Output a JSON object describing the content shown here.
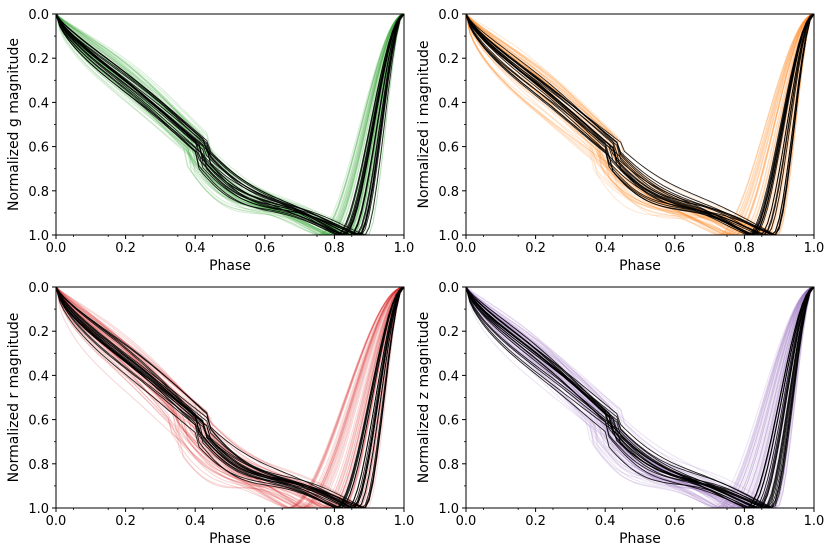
{
  "chart_data": [
    {
      "type": "line",
      "xlabel": "Phase",
      "ylabel": "Normalized g magnitude",
      "xlim": [
        0.0,
        1.0
      ],
      "ylim": [
        1.0,
        0.0
      ],
      "y_inverted": true,
      "xticks": [
        "0.0",
        "0.2",
        "0.4",
        "0.6",
        "0.8",
        "1.0"
      ],
      "yticks": [
        "0.0",
        "0.2",
        "0.4",
        "0.6",
        "0.8",
        "1.0"
      ],
      "grid": false,
      "background_color": "#2ca02c",
      "highlight_color": "#000000",
      "background_count": 60,
      "highlight_count": 20,
      "min_phase_range": [
        0.74,
        0.9
      ],
      "plateau_level_range": [
        0.82,
        0.94
      ],
      "typical_curve": {
        "x": [
          0.0,
          0.1,
          0.2,
          0.3,
          0.4,
          0.5,
          0.6,
          0.7,
          0.8,
          0.86,
          0.9,
          0.95,
          1.0
        ],
        "y": [
          0.0,
          0.28,
          0.45,
          0.6,
          0.73,
          0.82,
          0.87,
          0.89,
          0.93,
          1.0,
          0.7,
          0.25,
          0.0
        ]
      }
    },
    {
      "type": "line",
      "xlabel": "Phase",
      "ylabel": "Normalized i magnitude",
      "xlim": [
        0.0,
        1.0
      ],
      "ylim": [
        1.0,
        0.0
      ],
      "y_inverted": true,
      "xticks": [
        "0.0",
        "0.2",
        "0.4",
        "0.6",
        "0.8",
        "1.0"
      ],
      "yticks": [
        "0.0",
        "0.2",
        "0.4",
        "0.6",
        "0.8",
        "1.0"
      ],
      "grid": false,
      "background_color": "#ff7f0e",
      "highlight_color": "#000000",
      "background_count": 60,
      "highlight_count": 20,
      "min_phase_range": [
        0.72,
        0.9
      ],
      "plateau_level_range": [
        0.78,
        0.92
      ],
      "typical_curve": {
        "x": [
          0.0,
          0.1,
          0.2,
          0.3,
          0.4,
          0.5,
          0.6,
          0.7,
          0.8,
          0.86,
          0.9,
          0.95,
          1.0
        ],
        "y": [
          0.0,
          0.28,
          0.44,
          0.57,
          0.68,
          0.77,
          0.83,
          0.86,
          0.92,
          1.0,
          0.65,
          0.22,
          0.0
        ]
      }
    },
    {
      "type": "line",
      "xlabel": "Phase",
      "ylabel": "Normalized r magnitude",
      "xlim": [
        0.0,
        1.0
      ],
      "ylim": [
        1.0,
        0.0
      ],
      "y_inverted": true,
      "xticks": [
        "0.0",
        "0.2",
        "0.4",
        "0.6",
        "0.8",
        "1.0"
      ],
      "yticks": [
        "0.0",
        "0.2",
        "0.4",
        "0.6",
        "0.8",
        "1.0"
      ],
      "grid": false,
      "background_color": "#d62728",
      "highlight_color": "#000000",
      "background_count": 60,
      "highlight_count": 20,
      "min_phase_range": [
        0.66,
        0.9
      ],
      "plateau_level_range": [
        0.76,
        0.92
      ],
      "typical_curve": {
        "x": [
          0.0,
          0.1,
          0.2,
          0.3,
          0.4,
          0.5,
          0.6,
          0.7,
          0.8,
          0.86,
          0.9,
          0.95,
          1.0
        ],
        "y": [
          0.0,
          0.22,
          0.36,
          0.49,
          0.61,
          0.71,
          0.78,
          0.82,
          0.9,
          1.0,
          0.7,
          0.25,
          0.0
        ]
      }
    },
    {
      "type": "line",
      "xlabel": "Phase",
      "ylabel": "Normalized z magnitude",
      "xlim": [
        0.0,
        1.0
      ],
      "ylim": [
        1.0,
        0.0
      ],
      "y_inverted": true,
      "xticks": [
        "0.0",
        "0.2",
        "0.4",
        "0.6",
        "0.8",
        "1.0"
      ],
      "yticks": [
        "0.0",
        "0.2",
        "0.4",
        "0.6",
        "0.8",
        "1.0"
      ],
      "grid": false,
      "background_color": "#9467bd",
      "highlight_color": "#000000",
      "background_count": 60,
      "highlight_count": 20,
      "min_phase_range": [
        0.7,
        0.9
      ],
      "plateau_level_range": [
        0.76,
        0.92
      ],
      "typical_curve": {
        "x": [
          0.0,
          0.1,
          0.2,
          0.3,
          0.4,
          0.5,
          0.6,
          0.7,
          0.8,
          0.86,
          0.9,
          0.95,
          1.0
        ],
        "y": [
          0.0,
          0.24,
          0.38,
          0.51,
          0.62,
          0.71,
          0.78,
          0.83,
          0.95,
          1.0,
          0.7,
          0.25,
          0.0
        ]
      }
    }
  ]
}
